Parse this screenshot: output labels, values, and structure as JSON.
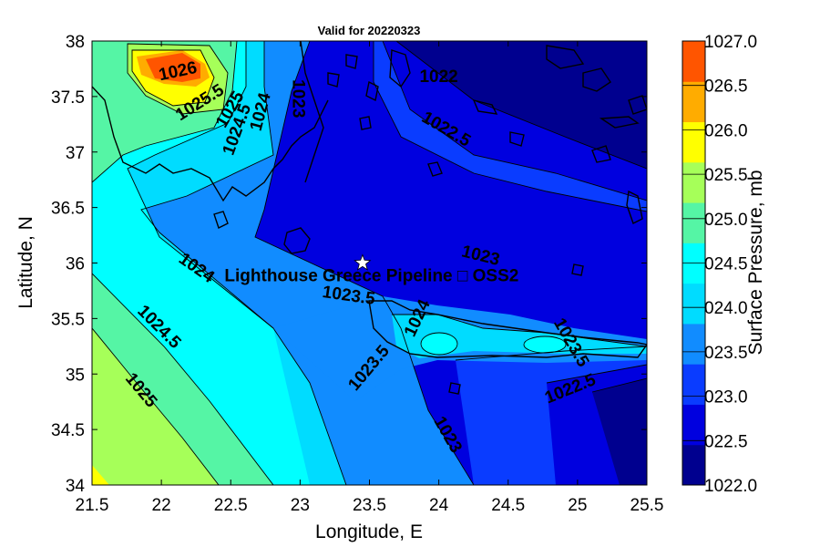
{
  "chart_data": {
    "type": "contour",
    "title": "Valid for 20220323",
    "xlabel": "Longitude, E",
    "ylabel": "Latitude, N",
    "xlim": [
      21.5,
      25.5
    ],
    "ylim": [
      34,
      38
    ],
    "xticks": [
      "21.5",
      "22",
      "22.5",
      "23",
      "23.5",
      "24",
      "24.5",
      "25",
      "25.5"
    ],
    "yticks": [
      "34",
      "34.5",
      "35",
      "35.5",
      "36",
      "36.5",
      "37",
      "37.5",
      "38"
    ],
    "colorbar": {
      "label": "Surface Pressure, mb",
      "levels": [
        1022.0,
        1022.5,
        1023.0,
        1023.5,
        1024.0,
        1024.5,
        1025.0,
        1025.5,
        1026.0,
        1026.5,
        1027.0
      ],
      "tick_labels": [
        "1022.0",
        "022.5",
        "023.0",
        "023.5",
        "024.0",
        "024.5",
        "025.0",
        "025.5",
        "026.0",
        "026.5",
        "1027.0"
      ],
      "colors": [
        "#00008f",
        "#0000df",
        "#0a3cff",
        "#118cff",
        "#00dcff",
        "#00ffff",
        "#55f5a5",
        "#a6ff59",
        "#ffff00",
        "#ffac00",
        "#ff5500"
      ]
    },
    "contour_labels": [
      {
        "text": "1026",
        "lon": 22.12,
        "lat": 37.72,
        "angle": -12
      },
      {
        "text": "1025.5",
        "lon": 22.28,
        "lat": 37.44,
        "angle": -32
      },
      {
        "text": "1025",
        "lon": 22.5,
        "lat": 37.38,
        "angle": -60
      },
      {
        "text": "1024.5",
        "lon": 22.55,
        "lat": 37.2,
        "angle": -70
      },
      {
        "text": "1024",
        "lon": 22.72,
        "lat": 37.36,
        "angle": -75
      },
      {
        "text": "1023",
        "lon": 22.98,
        "lat": 37.48,
        "angle": 90
      },
      {
        "text": "1022",
        "lon": 24.0,
        "lat": 37.67,
        "angle": 0
      },
      {
        "text": "1022.5",
        "lon": 24.05,
        "lat": 37.2,
        "angle": 30
      },
      {
        "text": "1023",
        "lon": 24.3,
        "lat": 36.06,
        "angle": 14
      },
      {
        "text": "1024",
        "lon": 22.25,
        "lat": 35.95,
        "angle": 35
      },
      {
        "text": "1023.5",
        "lon": 23.35,
        "lat": 35.7,
        "angle": 8
      },
      {
        "text": "1024",
        "lon": 23.85,
        "lat": 35.5,
        "angle": -65
      },
      {
        "text": "1024.5",
        "lon": 21.98,
        "lat": 35.42,
        "angle": 45
      },
      {
        "text": "1023.5",
        "lon": 23.5,
        "lat": 35.05,
        "angle": -50
      },
      {
        "text": "1023.5",
        "lon": 24.95,
        "lat": 35.28,
        "angle": 60
      },
      {
        "text": "1022.5",
        "lon": 24.95,
        "lat": 34.86,
        "angle": -22
      },
      {
        "text": "1025",
        "lon": 21.85,
        "lat": 34.85,
        "angle": 50
      },
      {
        "text": "1023",
        "lon": 24.06,
        "lat": 34.45,
        "angle": 60
      }
    ],
    "marker": {
      "lon": 23.45,
      "lat": 36.0,
      "symbol": "star"
    },
    "annotation": "Lighthouse Greece Pipeline □ OSS2"
  }
}
